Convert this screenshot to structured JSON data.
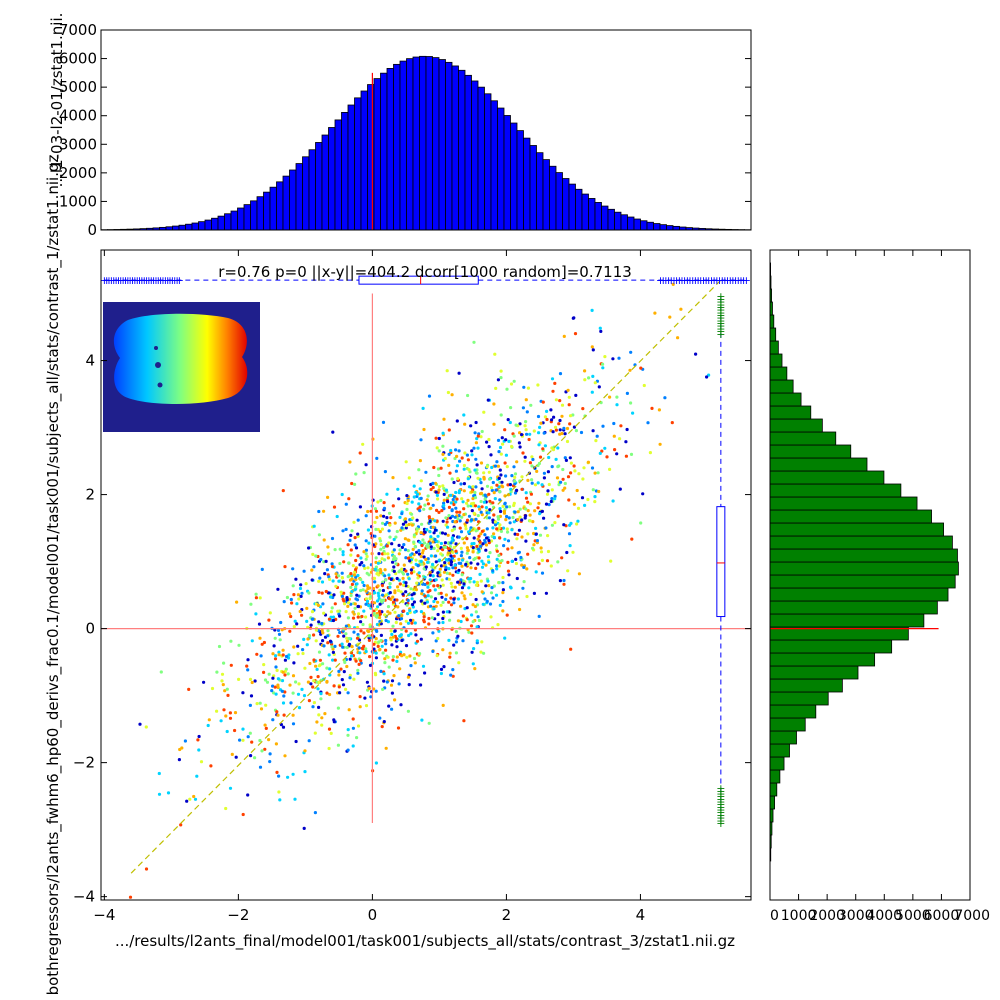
{
  "chart_data": [
    {
      "type": "scatter",
      "annotation": "r=0.76  p=0  ||x-y||=404.2  dcorr[1000 random]=0.7113",
      "xlabel": ".../results/l2ants_final/model001/task001/subjects_all/stats/contrast_3/zstat1.nii.gz",
      "ylabel": "bothregressors/l2ants_fwhm6_hp60_derivs_frac0.1/model001/task001/subjects_all/stats/contrast_1/zstat1.nii.gz",
      "xlim": [
        -4.05,
        5.65
      ],
      "ylim": [
        -4.05,
        5.65
      ],
      "xticks": [
        -4,
        -2,
        0,
        2,
        4
      ],
      "yticks": [
        -4,
        -2,
        0,
        2,
        4
      ],
      "xtick_labels": [
        "−4",
        "−2",
        "0",
        "2",
        "4"
      ],
      "ytick_labels": [
        "−4",
        "−2",
        "0",
        "2",
        "4"
      ],
      "correlation_r": 0.76,
      "diagonal_line": [
        [
          -3.6,
          -3.65
        ],
        [
          5.2,
          5.2
        ]
      ],
      "reference_lines": {
        "x": 0,
        "y": 0
      },
      "point_cloud": {
        "x_mean": 0.73,
        "y_mean": 0.95,
        "x_sd": 1.35,
        "y_sd": 1.3,
        "points_drawn": 2400
      },
      "colormap": [
        "#0000c8",
        "#0080ff",
        "#00d4ff",
        "#80ff80",
        "#e0ff30",
        "#ffb000",
        "#ff4000"
      ],
      "boxplot_x": {
        "position_y": 5.2,
        "whisker_low": -4.0,
        "q1": -0.2,
        "median": 0.72,
        "q3": 1.58,
        "whisker_high": 5.6,
        "color": "#0000ff"
      },
      "boxplot_y": {
        "position_x": 5.2,
        "whisker_low": -2.85,
        "q1": 0.18,
        "median": 0.98,
        "q3": 1.82,
        "whisker_high": 4.95,
        "color": "#0000ff",
        "outlier_color": "#008000"
      },
      "inset": {
        "description": "brain slice colored by location",
        "background": "#1f1f8c"
      }
    },
    {
      "type": "bar",
      "orientation": "vertical",
      "ylabel": "...l1-03-l2-01/zstat1.nii.",
      "ylim": [
        0,
        7000
      ],
      "yticks": [
        0,
        1000,
        2000,
        3000,
        4000,
        5000,
        6000,
        7000
      ],
      "ytick_labels": [
        "0",
        "1000",
        "2000",
        "3000",
        "4000",
        "5000",
        "6000",
        "7000"
      ],
      "bins": 100,
      "bin_range": [
        -4.05,
        5.65
      ],
      "peak_value": 6080,
      "peak_center": 0.78,
      "spread": 1.35,
      "median_marker_x": 0,
      "color": "#0000ff"
    },
    {
      "type": "bar",
      "orientation": "horizontal",
      "xlim": [
        0,
        7000
      ],
      "xticks": [
        0,
        1000,
        2000,
        3000,
        4000,
        5000,
        6000,
        7000
      ],
      "xtick_labels": [
        "0",
        "1000",
        "2000",
        "3000",
        "4000",
        "5000",
        "6000",
        "7000"
      ],
      "bins": 50,
      "bin_range": [
        -4.05,
        5.65
      ],
      "peak_value": 6600,
      "peak_center": 0.95,
      "spread": 1.3,
      "median_marker_y": 0,
      "color": "#008000"
    }
  ]
}
